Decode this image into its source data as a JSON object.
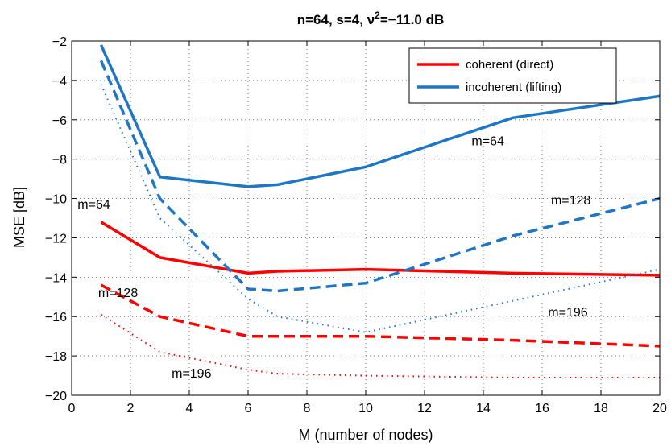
{
  "chart_data": {
    "type": "line",
    "title_main": "n=64, s=4, ",
    "title_nu": "ν",
    "title_sup": "2",
    "title_rest": "=−11.0 dB",
    "xlabel": "M (number of nodes)",
    "ylabel": "MSE [dB]",
    "xlim": [
      0,
      20
    ],
    "ylim": [
      -20,
      -2
    ],
    "xticks": [
      0,
      2,
      4,
      6,
      8,
      10,
      12,
      14,
      16,
      18,
      20
    ],
    "yticks": [
      -20,
      -18,
      -16,
      -14,
      -12,
      -10,
      -8,
      -6,
      -4,
      -2
    ],
    "xtick_labels": [
      "0",
      "2",
      "4",
      "6",
      "8",
      "10",
      "12",
      "14",
      "16",
      "18",
      "20"
    ],
    "ytick_labels": [
      "−20",
      "−18",
      "−16",
      "−14",
      "−12",
      "−10",
      "−8",
      "−6",
      "−4",
      "−2"
    ],
    "grid": true,
    "legend_position": "top-right",
    "legend": [
      {
        "label": "coherent (direct)",
        "color": "#ff0000"
      },
      {
        "label": "incoherent (lifting)",
        "color": "#1f77c4"
      }
    ],
    "series": [
      {
        "group": "coherent",
        "m": 64,
        "color": "#ff0000",
        "style": "solid",
        "x": [
          1,
          3,
          6,
          7,
          10,
          15,
          20
        ],
        "y": [
          -11.2,
          -13.0,
          -13.8,
          -13.7,
          -13.6,
          -13.8,
          -13.9
        ]
      },
      {
        "group": "coherent",
        "m": 128,
        "color": "#ff0000",
        "style": "dashed",
        "x": [
          1,
          3,
          6,
          7,
          10,
          15,
          20
        ],
        "y": [
          -14.4,
          -16.0,
          -17.0,
          -17.0,
          -17.0,
          -17.2,
          -17.5
        ]
      },
      {
        "group": "coherent",
        "m": 196,
        "color": "#ff0000",
        "style": "dotted",
        "x": [
          1,
          3,
          6,
          7,
          10,
          15,
          20
        ],
        "y": [
          -15.9,
          -17.8,
          -18.7,
          -18.9,
          -19.0,
          -19.1,
          -19.1
        ]
      },
      {
        "group": "incoherent",
        "m": 64,
        "color": "#1f77c4",
        "style": "solid",
        "x": [
          1,
          3,
          6,
          7,
          10,
          15,
          20
        ],
        "y": [
          -2.2,
          -8.9,
          -9.4,
          -9.3,
          -8.4,
          -5.9,
          -4.8
        ]
      },
      {
        "group": "incoherent",
        "m": 128,
        "color": "#1f77c4",
        "style": "dashed",
        "x": [
          1,
          3,
          6,
          7,
          10,
          15,
          20
        ],
        "y": [
          -3.0,
          -10.0,
          -14.6,
          -14.7,
          -14.3,
          -11.9,
          -10.0
        ]
      },
      {
        "group": "incoherent",
        "m": 196,
        "color": "#1f77c4",
        "style": "dotted",
        "x": [
          1,
          3,
          6,
          7,
          10,
          15,
          20
        ],
        "y": [
          -4.2,
          -11.0,
          -15.1,
          -16.0,
          -16.8,
          -15.2,
          -13.6
        ]
      }
    ],
    "annotations": [
      {
        "text": "m=64",
        "x": 0.2,
        "y": -10.5
      },
      {
        "text": "m=128",
        "x": 0.9,
        "y": -15.0
      },
      {
        "text": "m=196",
        "x": 3.4,
        "y": -19.1
      },
      {
        "text": "m=64",
        "x": 13.6,
        "y": -7.3
      },
      {
        "text": "m=128",
        "x": 16.3,
        "y": -10.3
      },
      {
        "text": "m=196",
        "x": 16.2,
        "y": -16.0
      }
    ]
  }
}
